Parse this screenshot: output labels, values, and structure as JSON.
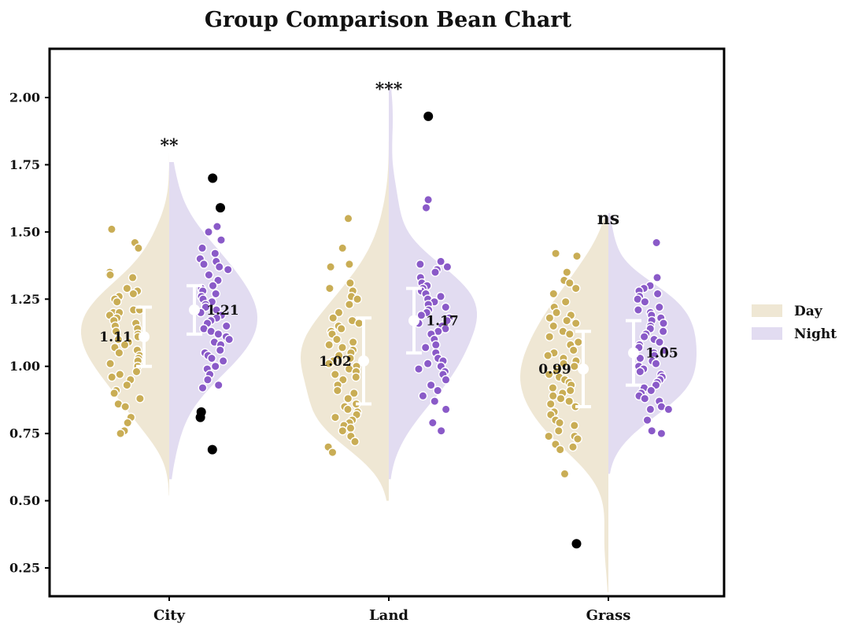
{
  "chart_data": {
    "type": "bean",
    "title": "Group Comparison Bean Chart",
    "xlabel": "",
    "ylabel": "",
    "ylim": [
      0.15,
      2.18
    ],
    "yticks": [
      0.25,
      0.5,
      0.75,
      1.0,
      1.25,
      1.5,
      1.75,
      2.0
    ],
    "ytick_labels": [
      "0.25",
      "0.50",
      "0.75",
      "1.00",
      "1.25",
      "1.50",
      "1.75",
      "2.00"
    ],
    "categories": [
      "City",
      "Land",
      "Grass"
    ],
    "legend": {
      "position": "right",
      "entries": [
        {
          "name": "Day",
          "color": "#efe7d4"
        },
        {
          "name": "Night",
          "color": "#e2dcf1"
        }
      ]
    },
    "colors": {
      "day_fill": "#efe7d4",
      "night_fill": "#e2dcf1",
      "day_point": "#c9ad55",
      "night_point": "#8a5ac8",
      "outlier": "#000000",
      "summary": "#ffffff"
    },
    "groups": [
      {
        "category": "City",
        "significance": "**",
        "day": {
          "mean": 1.11,
          "mean_label": "1.11",
          "sd": 0.11,
          "range": [
            0.52,
            1.84
          ],
          "points": [
            1.51,
            1.46,
            1.44,
            1.35,
            1.34,
            1.34,
            1.33,
            1.29,
            1.28,
            1.27,
            1.26,
            1.25,
            1.24,
            1.21,
            1.21,
            1.2,
            1.2,
            1.19,
            1.18,
            1.17,
            1.16,
            1.15,
            1.14,
            1.13,
            1.12,
            1.11,
            1.1,
            1.09,
            1.08,
            1.07,
            1.06,
            1.05,
            1.04,
            1.03,
            1.02,
            1.01,
            1.0,
            0.98,
            0.97,
            0.96,
            0.95,
            0.93,
            0.91,
            0.9,
            0.88,
            0.86,
            0.85,
            0.81,
            0.79,
            0.76,
            0.75
          ],
          "outliers": []
        },
        "night": {
          "mean": 1.21,
          "mean_label": "1.21",
          "sd": 0.09,
          "range": [
            0.58,
            1.76
          ],
          "points": [
            1.52,
            1.5,
            1.47,
            1.44,
            1.42,
            1.4,
            1.39,
            1.38,
            1.37,
            1.36,
            1.34,
            1.32,
            1.3,
            1.29,
            1.28,
            1.27,
            1.26,
            1.25,
            1.24,
            1.23,
            1.22,
            1.21,
            1.2,
            1.19,
            1.18,
            1.17,
            1.16,
            1.15,
            1.14,
            1.13,
            1.12,
            1.11,
            1.1,
            1.09,
            1.08,
            1.06,
            1.05,
            1.04,
            1.03,
            1.02,
            1.0,
            0.99,
            0.97,
            0.95,
            0.93,
            0.92
          ],
          "outliers": [
            1.7,
            1.59,
            0.83,
            0.81,
            0.69
          ]
        }
      },
      {
        "category": "Land",
        "significance": "***",
        "day": {
          "mean": 1.02,
          "mean_label": "1.02",
          "sd": 0.16,
          "range": [
            0.5,
            2.0
          ],
          "points": [
            1.55,
            1.44,
            1.38,
            1.37,
            1.31,
            1.29,
            1.28,
            1.26,
            1.25,
            1.23,
            1.2,
            1.18,
            1.17,
            1.16,
            1.15,
            1.14,
            1.13,
            1.12,
            1.1,
            1.09,
            1.08,
            1.07,
            1.06,
            1.05,
            1.04,
            1.03,
            1.02,
            1.01,
            1.0,
            0.99,
            0.98,
            0.97,
            0.96,
            0.95,
            0.93,
            0.91,
            0.9,
            0.88,
            0.86,
            0.85,
            0.84,
            0.83,
            0.82,
            0.81,
            0.8,
            0.79,
            0.78,
            0.77,
            0.76,
            0.74,
            0.72,
            0.7,
            0.68
          ],
          "outliers": []
        },
        "night": {
          "mean": 1.17,
          "mean_label": "1.17",
          "sd": 0.12,
          "range": [
            0.58,
            2.05
          ],
          "points": [
            1.62,
            1.59,
            1.39,
            1.38,
            1.37,
            1.36,
            1.35,
            1.33,
            1.31,
            1.3,
            1.29,
            1.28,
            1.27,
            1.26,
            1.25,
            1.24,
            1.23,
            1.22,
            1.21,
            1.2,
            1.19,
            1.18,
            1.17,
            1.16,
            1.15,
            1.14,
            1.13,
            1.12,
            1.1,
            1.08,
            1.07,
            1.05,
            1.03,
            1.02,
            1.01,
            1.0,
            0.99,
            0.98,
            0.97,
            0.95,
            0.93,
            0.91,
            0.89,
            0.87,
            0.84,
            0.79,
            0.76
          ],
          "outliers": [
            1.93
          ]
        }
      },
      {
        "category": "Grass",
        "significance": "ns",
        "day": {
          "mean": 0.99,
          "mean_label": "0.99",
          "sd": 0.14,
          "range": [
            0.16,
            1.55
          ],
          "points": [
            1.42,
            1.41,
            1.35,
            1.32,
            1.31,
            1.29,
            1.27,
            1.24,
            1.22,
            1.2,
            1.19,
            1.18,
            1.17,
            1.16,
            1.15,
            1.13,
            1.12,
            1.11,
            1.09,
            1.08,
            1.06,
            1.05,
            1.04,
            1.03,
            1.02,
            1.01,
            1.0,
            0.99,
            0.98,
            0.97,
            0.96,
            0.95,
            0.94,
            0.93,
            0.92,
            0.91,
            0.9,
            0.89,
            0.88,
            0.87,
            0.86,
            0.85,
            0.83,
            0.82,
            0.8,
            0.79,
            0.78,
            0.76,
            0.74,
            0.74,
            0.73,
            0.71,
            0.7,
            0.69,
            0.6
          ],
          "outliers": [
            0.34
          ]
        },
        "night": {
          "mean": 1.05,
          "mean_label": "1.05",
          "sd": 0.12,
          "range": [
            0.6,
            1.57
          ],
          "points": [
            1.46,
            1.33,
            1.3,
            1.29,
            1.28,
            1.27,
            1.26,
            1.25,
            1.24,
            1.22,
            1.21,
            1.2,
            1.19,
            1.18,
            1.17,
            1.16,
            1.15,
            1.14,
            1.13,
            1.12,
            1.11,
            1.1,
            1.09,
            1.08,
            1.07,
            1.06,
            1.05,
            1.04,
            1.03,
            1.02,
            1.01,
            1.0,
            0.99,
            0.98,
            0.97,
            0.96,
            0.95,
            0.94,
            0.93,
            0.92,
            0.91,
            0.9,
            0.89,
            0.88,
            0.87,
            0.85,
            0.84,
            0.84,
            0.8,
            0.76,
            0.75
          ],
          "outliers": []
        }
      }
    ]
  }
}
